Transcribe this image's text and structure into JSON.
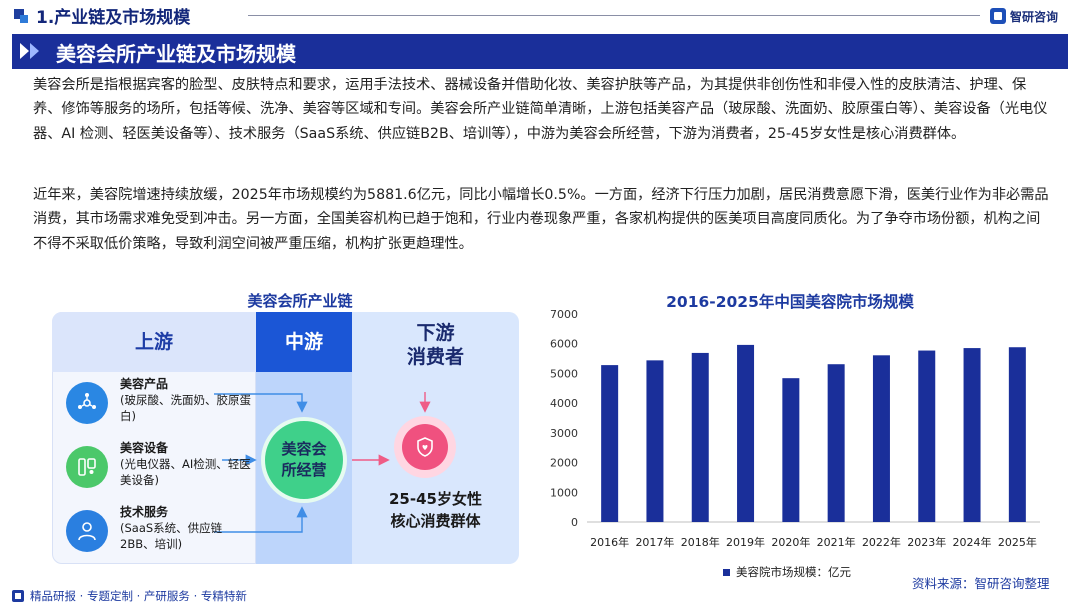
{
  "header": {
    "section_title": "1.产业链及市场规模",
    "brand": "智研咨询"
  },
  "banner": {
    "title": "美容会所产业链及市场规模"
  },
  "body": {
    "para1": "美容会所是指根据宾客的脸型、皮肤特点和要求，运用手法技术、器械设备并借助化妆、美容护肤等产品，为其提供非创伤性和非侵入性的皮肤清洁、护理、保养、修饰等服务的场所，包括等候、洗净、美容等区域和专间。美容会所产业链简单清晰，上游包括美容产品（玻尿酸、洗面奶、胶原蛋白等）、美容设备（光电仪器、AI 检测、轻医美设备等）、技术服务（SaaS系统、供应链B2B、培训等），中游为美容会所经营，下游为消费者，25-45岁女性是核心消费群体。",
    "para2": "近年来，美容院增速持续放缓，2025年市场规模约为5881.6亿元，同比小幅增长0.5%。一方面，经济下行压力加剧，居民消费意愿下滑，医美行业作为非必需品消费，其市场需求难免受到冲击。另一方面，全国美容机构已趋于饱和，行业内卷现象严重，各家机构提供的医美项目高度同质化。为了争夺市场份额，机构之间不得不采取低价策略，导致利润空间被严重压缩，机构扩张更趋理性。"
  },
  "diagram": {
    "title": "美容会所产业链",
    "upstream_label": "上游",
    "midstream_label": "中游",
    "downstream_label_line1": "下游",
    "downstream_label_line2": "消费者",
    "upstream_items": [
      {
        "name": "美容产品",
        "detail": "(玻尿酸、洗面奶、胶原蛋白)",
        "icon": "molecule-icon"
      },
      {
        "name": "美容设备",
        "detail": "(光电仪器、AI检测、轻医美设备)",
        "icon": "device-icon"
      },
      {
        "name": "技术服务",
        "detail": "(SaaS系统、供应链2BB、培训)",
        "icon": "person-icon"
      }
    ],
    "midstream_node_line1": "美容会",
    "midstream_node_line2": "所经营",
    "downstream_target_line1": "25-45岁女性",
    "downstream_target_line2": "核心消费群体",
    "colors": {
      "upstream_bg": "#f3f6fd",
      "midstream_bg": "#bdd5fb",
      "midstream_head": "#1b56d6",
      "downstream_bg": "#d9e7fd",
      "mid_node": "#3fd08a",
      "down_node": "#f0517f"
    }
  },
  "chart_data": {
    "type": "bar",
    "title": "2016-2025年中国美容院市场规模",
    "categories": [
      "2016年",
      "2017年",
      "2018年",
      "2019年",
      "2020年",
      "2021年",
      "2022年",
      "2023年",
      "2024年",
      "2025年"
    ],
    "series": [
      {
        "name": "美容院市场规模：亿元",
        "values": [
          5280,
          5440,
          5690,
          5960,
          4840,
          5310,
          5610,
          5770,
          5853,
          5881.6
        ],
        "color": "#1a2f9a"
      }
    ],
    "xlabel": "",
    "ylabel": "",
    "ylim": [
      0,
      7000
    ],
    "yticks": [
      0,
      1000,
      2000,
      3000,
      4000,
      5000,
      6000,
      7000
    ],
    "grid": false,
    "legend_position": "bottom"
  },
  "source": "资料来源：智研咨询整理",
  "footer": {
    "text": "精品研报 · 专题定制 · 产研服务 · 专精特新"
  }
}
